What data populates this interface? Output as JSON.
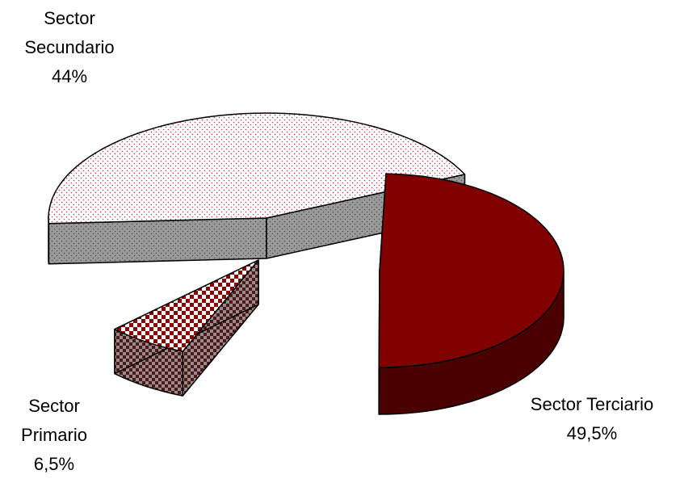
{
  "chart_data": {
    "type": "pie",
    "title": "",
    "style": "3d-exploded",
    "slices": [
      {
        "name": "Sector Secundario",
        "label_lines": [
          "Sector",
          "Secundario"
        ],
        "value_label": "44%",
        "value": 44,
        "top_fill": "dotted",
        "top_color": "#ffffff",
        "pattern_color": "#c0404a",
        "side_color": "#9a9a9a"
      },
      {
        "name": "Sector Primario",
        "label_lines": [
          "Sector",
          "Primario"
        ],
        "value_label": "6,5%",
        "value": 6.5,
        "top_fill": "checkered",
        "top_color": "#ffffff",
        "pattern_color": "#8b0000",
        "side_color": "#7a5a5a"
      },
      {
        "name": "Sector Terciario",
        "label_lines": [
          "Sector Terciario"
        ],
        "value_label": "49,5%",
        "value": 49.5,
        "top_fill": "solid",
        "top_color": "#800000",
        "side_color": "#4a0000"
      }
    ]
  }
}
